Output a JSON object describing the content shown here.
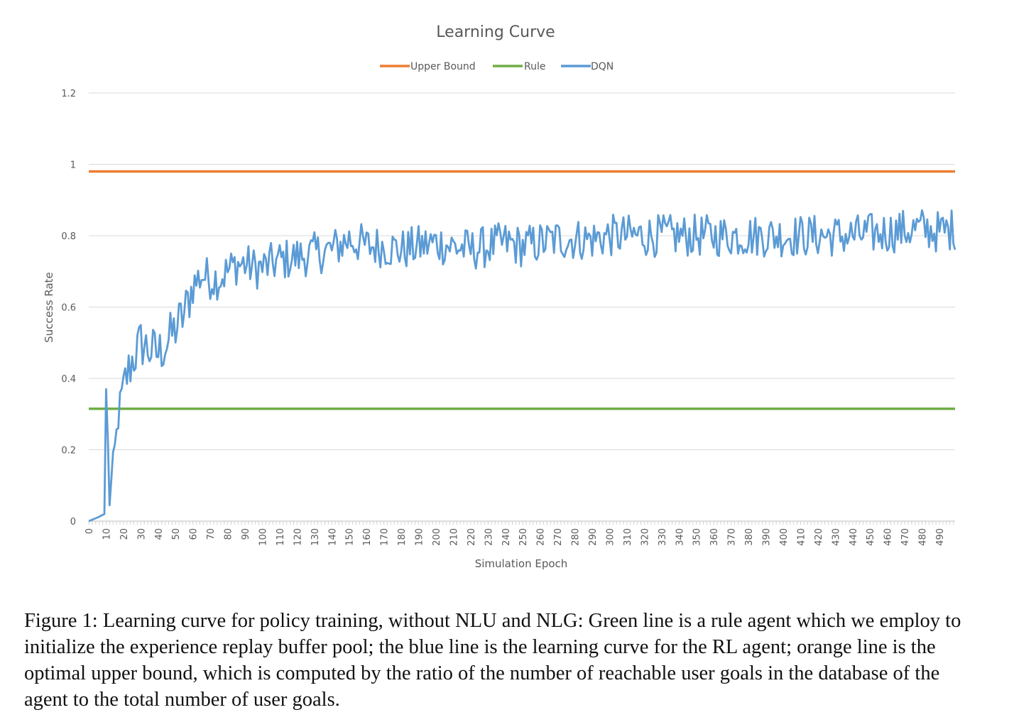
{
  "chart_data": {
    "type": "line",
    "title": "Learning Curve",
    "xlabel": "Simulation Epoch",
    "ylabel": "Success Rate",
    "xlim": [
      0,
      499
    ],
    "ylim": [
      0,
      1.2
    ],
    "yticks": [
      0,
      0.2,
      0.4,
      0.6,
      0.8,
      1,
      1.2
    ],
    "ytick_labels": [
      "0",
      "0.2",
      "0.4",
      "0.6",
      "0.8",
      "1",
      "1.2"
    ],
    "xtick_labels": [
      "0",
      "10",
      "20",
      "30",
      "40",
      "50",
      "60",
      "70",
      "80",
      "90",
      "100",
      "110",
      "120",
      "130",
      "140",
      "150",
      "160",
      "170",
      "180",
      "190",
      "200",
      "210",
      "220",
      "230",
      "240",
      "250",
      "260",
      "270",
      "280",
      "290",
      "300",
      "310",
      "320",
      "330",
      "340",
      "350",
      "360",
      "370",
      "380",
      "390",
      "400",
      "410",
      "420",
      "430",
      "440",
      "450",
      "460",
      "470",
      "480",
      "490"
    ],
    "legend_position": "top-center",
    "grid": "horizontal",
    "series": [
      {
        "name": "Upper Bound",
        "color": "#ED7D31",
        "constant": 0.98
      },
      {
        "name": "Rule",
        "color": "#70AD47",
        "constant": 0.315
      },
      {
        "name": "DQN",
        "color": "#5B9BD5",
        "x": [
          0,
          5,
          9,
          10,
          12,
          15,
          18,
          20,
          25,
          30,
          35,
          40,
          45,
          50,
          55,
          60,
          65,
          70,
          75,
          80,
          85,
          90,
          95,
          100,
          110,
          120,
          130,
          140,
          150,
          160,
          170,
          180,
          190,
          200,
          210,
          220,
          230,
          240,
          250,
          260,
          270,
          280,
          290,
          300,
          320,
          340,
          360,
          380,
          400,
          420,
          440,
          460,
          480,
          490,
          499
        ],
        "y": [
          0,
          0.01,
          0.02,
          0.37,
          0.06,
          0.2,
          0.33,
          0.38,
          0.45,
          0.5,
          0.48,
          0.47,
          0.5,
          0.54,
          0.58,
          0.66,
          0.69,
          0.68,
          0.68,
          0.7,
          0.72,
          0.72,
          0.71,
          0.71,
          0.73,
          0.74,
          0.75,
          0.76,
          0.79,
          0.77,
          0.77,
          0.76,
          0.77,
          0.78,
          0.77,
          0.76,
          0.77,
          0.78,
          0.77,
          0.78,
          0.79,
          0.79,
          0.79,
          0.8,
          0.8,
          0.8,
          0.8,
          0.8,
          0.8,
          0.8,
          0.8,
          0.81,
          0.82,
          0.81,
          0.82
        ],
        "noise_amplitude_after_epoch_20": 0.06
      }
    ]
  },
  "caption": "Figure 1: Learning curve for policy training, without NLU and NLG: Green line is a rule agent which we employ to initialize the experience replay buffer pool; the blue line is the learning curve for the RL agent; orange line is the optimal upper bound, which is computed by the ratio of the number of reachable user goals in the database of the agent to the total number of user goals."
}
